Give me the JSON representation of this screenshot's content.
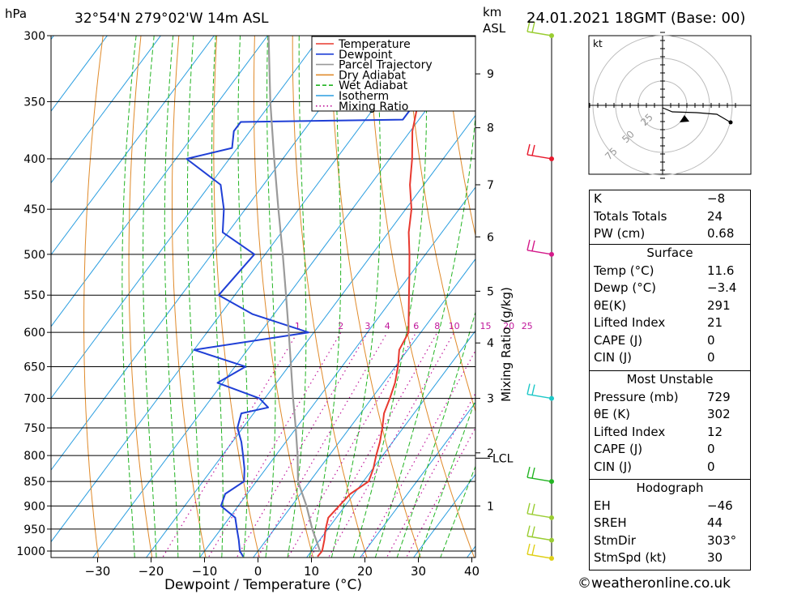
{
  "header": {
    "pressure_unit": "hPa",
    "location": "32°54'N 279°02'W 14m ASL",
    "height_unit_line1": "km",
    "height_unit_line2": "ASL",
    "datetime": "24.01.2021 18GMT (Base: 00)"
  },
  "chart_data": {
    "type": "line",
    "subtype": "skew-t log-p sounding",
    "xlabel": "Dewpoint / Temperature (°C)",
    "ylabel": "hPa",
    "right_axis_label": "Mixing Ratio (g/kg)",
    "x_ticks": [
      "−30",
      "−20",
      "−10",
      "0",
      "10",
      "20",
      "30",
      "40"
    ],
    "x_tick_values": [
      -30,
      -20,
      -10,
      0,
      10,
      20,
      30,
      40
    ],
    "pressure_ticks": [
      "300",
      "350",
      "400",
      "450",
      "500",
      "550",
      "600",
      "650",
      "700",
      "750",
      "800",
      "850",
      "900",
      "950",
      "1000"
    ],
    "pressure_values": [
      300,
      350,
      400,
      450,
      500,
      550,
      600,
      650,
      700,
      750,
      800,
      850,
      900,
      950,
      1000
    ],
    "km_ticks": [
      "1",
      "2",
      "3",
      "4",
      "5",
      "6",
      "7",
      "8",
      "9"
    ],
    "km_pressures": [
      900,
      795,
      700,
      615,
      545,
      480,
      425,
      372,
      328
    ],
    "lcl_label": "LCL",
    "lcl_pressure": 805,
    "mixing_ratio_labels": [
      "1",
      "2",
      "3",
      "4",
      "6",
      "8",
      "10",
      "15",
      "20",
      "25"
    ],
    "legend": [
      "Temperature",
      "Dewpoint",
      "Parcel Trajectory",
      "Dry Adiabat",
      "Wet Adiabat",
      "Isotherm",
      "Mixing Ratio"
    ],
    "colors": {
      "temperature": "#e8392f",
      "dewpoint": "#1f3fd6",
      "parcel": "#9a9a9a",
      "dry_adiabat": "#e08a2a",
      "wet_adiabat": "#22b422",
      "isotherm": "#2a9ee0",
      "mixing_ratio": "#c0169a"
    },
    "series": [
      {
        "name": "Temperature",
        "points": [
          [
            1013,
            11.9
          ],
          [
            1000,
            12.0
          ],
          [
            975,
            10.9
          ],
          [
            950,
            9.6
          ],
          [
            925,
            8.5
          ],
          [
            900,
            8.9
          ],
          [
            875,
            9.3
          ],
          [
            850,
            11.0
          ],
          [
            825,
            10.1
          ],
          [
            800,
            8.8
          ],
          [
            775,
            7.6
          ],
          [
            750,
            6.1
          ],
          [
            725,
            4.4
          ],
          [
            700,
            3.4
          ],
          [
            675,
            2.2
          ],
          [
            650,
            0.5
          ],
          [
            625,
            -1.6
          ],
          [
            600,
            -2.3
          ],
          [
            575,
            -4.8
          ],
          [
            550,
            -7.4
          ],
          [
            525,
            -10.1
          ],
          [
            500,
            -13.0
          ],
          [
            475,
            -16.2
          ],
          [
            450,
            -18.9
          ],
          [
            425,
            -22.6
          ],
          [
            400,
            -25.8
          ],
          [
            375,
            -29.6
          ],
          [
            350,
            -32.6
          ],
          [
            325,
            -36.8
          ],
          [
            300,
            -40.9
          ]
        ]
      },
      {
        "name": "Dewpoint",
        "points": [
          [
            1013,
            -2.0
          ],
          [
            1000,
            -3.4
          ],
          [
            975,
            -5.1
          ],
          [
            950,
            -7.0
          ],
          [
            925,
            -8.9
          ],
          [
            900,
            -13.2
          ],
          [
            875,
            -14.1
          ],
          [
            850,
            -12.3
          ],
          [
            825,
            -14.0
          ],
          [
            800,
            -16.1
          ],
          [
            775,
            -18.3
          ],
          [
            750,
            -21.0
          ],
          [
            725,
            -22.3
          ],
          [
            715,
            -18.1
          ],
          [
            700,
            -21.0
          ],
          [
            675,
            -31.0
          ],
          [
            650,
            -28.0
          ],
          [
            625,
            -40.0
          ],
          [
            600,
            -21.0
          ],
          [
            575,
            -34.0
          ],
          [
            550,
            -43.0
          ],
          [
            500,
            -42.0
          ],
          [
            475,
            -51.0
          ],
          [
            450,
            -54.0
          ],
          [
            425,
            -58.0
          ],
          [
            400,
            -68.0
          ],
          [
            390,
            -61.0
          ],
          [
            375,
            -63.0
          ],
          [
            367,
            -63.0
          ],
          [
            365,
            -33.0
          ],
          [
            350,
            -33.0
          ],
          [
            340,
            -31.0
          ],
          [
            325,
            -53.0
          ],
          [
            305,
            -52.0
          ],
          [
            300,
            -48.0
          ]
        ]
      },
      {
        "name": "Parcel Trajectory",
        "points": [
          [
            1000,
            11.6
          ],
          [
            950,
            7.1
          ],
          [
            900,
            2.8
          ],
          [
            850,
            -2.2
          ],
          [
            800,
            -5.9
          ],
          [
            750,
            -10.1
          ],
          [
            700,
            -14.7
          ],
          [
            650,
            -19.5
          ],
          [
            600,
            -24.7
          ],
          [
            550,
            -30.4
          ],
          [
            500,
            -36.7
          ],
          [
            450,
            -43.8
          ],
          [
            400,
            -51.6
          ],
          [
            350,
            -60.3
          ],
          [
            300,
            -69.8
          ]
        ]
      }
    ],
    "wind_barbs": [
      {
        "pressure": 300,
        "color": "#9acd32"
      },
      {
        "pressure": 400,
        "color": "#e8192c"
      },
      {
        "pressure": 500,
        "color": "#d41a8a"
      },
      {
        "pressure": 700,
        "color": "#1ec8c8"
      },
      {
        "pressure": 850,
        "color": "#22b422"
      },
      {
        "pressure": 925,
        "color": "#9acd32"
      },
      {
        "pressure": 975,
        "color": "#9acd32"
      },
      {
        "pressure": 1000,
        "color": "#e0d018"
      }
    ]
  },
  "hodograph": {
    "unit": "kt",
    "ring_labels": [
      "25",
      "50",
      "75"
    ]
  },
  "indices": {
    "rows": [
      {
        "label": "K",
        "value": "−8"
      },
      {
        "label": "Totals Totals",
        "value": "24"
      },
      {
        "label": "PW (cm)",
        "value": "0.68"
      }
    ]
  },
  "surface": {
    "title": "Surface",
    "rows": [
      {
        "label": "Temp (°C)",
        "value": "11.6"
      },
      {
        "label": "Dewp (°C)",
        "value": "−3.4"
      },
      {
        "label": "θE(K)",
        "value": "291"
      },
      {
        "label": "Lifted Index",
        "value": "21"
      },
      {
        "label": "CAPE (J)",
        "value": "0"
      },
      {
        "label": "CIN (J)",
        "value": "0"
      }
    ]
  },
  "most_unstable": {
    "title": "Most Unstable",
    "rows": [
      {
        "label": "Pressure (mb)",
        "value": "729"
      },
      {
        "label": "θE (K)",
        "value": "302"
      },
      {
        "label": "Lifted Index",
        "value": "12"
      },
      {
        "label": "CAPE (J)",
        "value": "0"
      },
      {
        "label": "CIN (J)",
        "value": "0"
      }
    ]
  },
  "hodo_params": {
    "title": "Hodograph",
    "rows": [
      {
        "label": "EH",
        "value": "−46"
      },
      {
        "label": "SREH",
        "value": "44"
      },
      {
        "label": "StmDir",
        "value": "303°"
      },
      {
        "label": "StmSpd (kt)",
        "value": "30"
      }
    ]
  },
  "footer": "©weatheronline.co.uk"
}
